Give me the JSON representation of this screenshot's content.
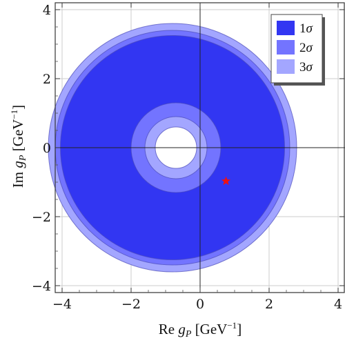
{
  "chart_data": {
    "type": "contour",
    "xlabel": "Re g_P [GeV^-1]",
    "ylabel": "Im g_P [GeV^-1]",
    "xlim": [
      -4.2,
      4.2
    ],
    "ylim": [
      -4.2,
      4.2
    ],
    "xticks": [
      -4,
      -2,
      0,
      2,
      4
    ],
    "yticks": [
      -4,
      -2,
      0,
      2,
      4
    ],
    "tick_labels": [
      "−4",
      "−2",
      "0",
      "2",
      "4"
    ],
    "grid": true,
    "legend_position": "top-right",
    "regions": [
      {
        "name": "3σ",
        "color": "#a3a6ff",
        "outer_center": [
          -0.8,
          0.0
        ],
        "outer_radius": 3.6,
        "inner_center": [
          -0.7,
          0.0
        ],
        "inner_radius": 0.6
      },
      {
        "name": "2σ",
        "color": "#7374ff",
        "outer_center": [
          -0.8,
          0.0
        ],
        "outer_radius": 3.4,
        "inner_center": [
          -0.7,
          0.0
        ],
        "inner_radius": 0.9
      },
      {
        "name": "1σ",
        "color": "#3236f2",
        "outer_center": [
          -0.8,
          0.0
        ],
        "outer_radius": 3.25,
        "inner_center": [
          -0.7,
          0.0
        ],
        "inner_radius": 1.3
      }
    ],
    "marker": {
      "shape": "star",
      "x": 0.75,
      "y": -0.97,
      "color": "#ee1111"
    },
    "legend": [
      {
        "label": "1σ",
        "color": "#3236f2"
      },
      {
        "label": "2σ",
        "color": "#7374ff"
      },
      {
        "label": "3σ",
        "color": "#a3a6ff"
      }
    ]
  }
}
